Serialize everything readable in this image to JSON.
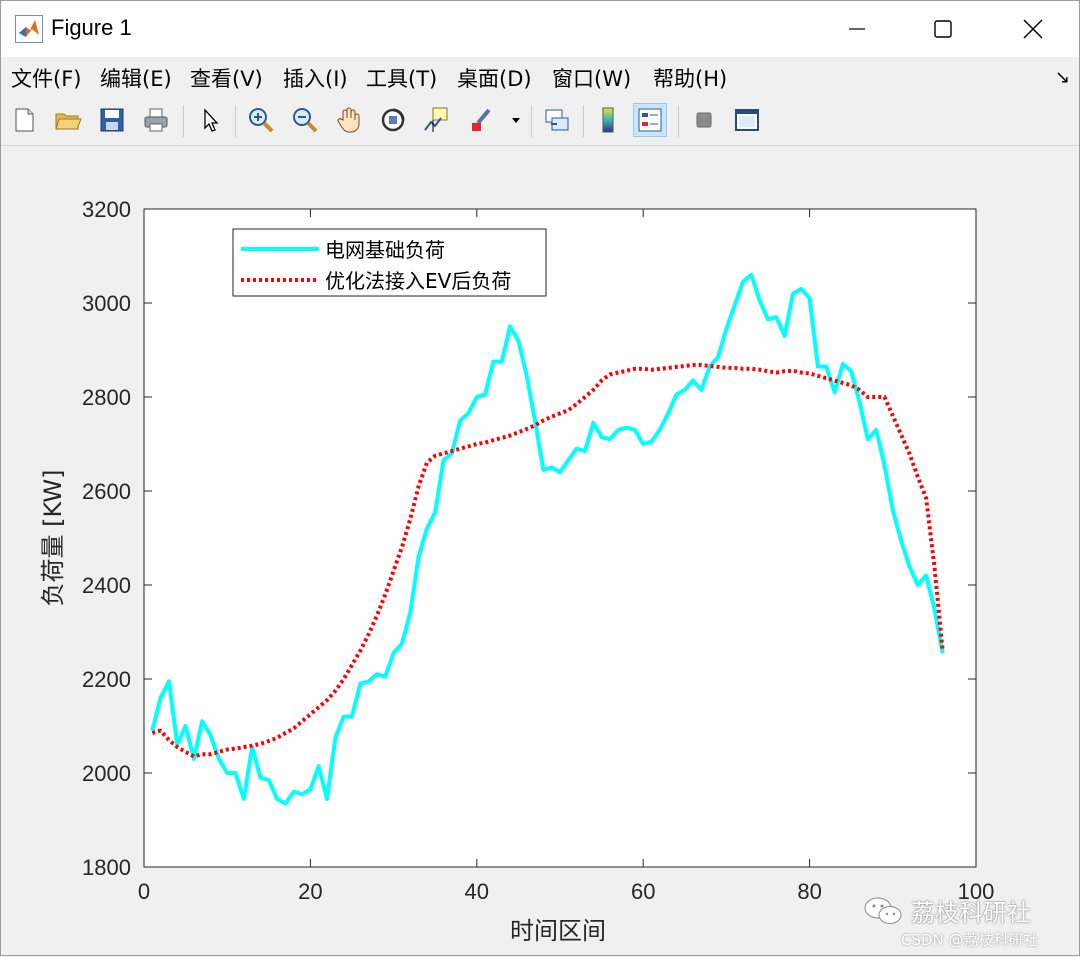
{
  "window": {
    "title": "Figure 1",
    "controls": {
      "minimize": "minimize",
      "maximize": "maximize",
      "close": "close"
    }
  },
  "menu": {
    "items": [
      "文件(F)",
      "编辑(E)",
      "查看(V)",
      "插入(I)",
      "工具(T)",
      "桌面(D)",
      "窗口(W)",
      "帮助(H)"
    ],
    "dock_arrow": "↘"
  },
  "toolbar": {
    "icons": [
      "new-figure-icon",
      "open-file-icon",
      "save-icon",
      "print-icon",
      "select-arrow-icon",
      "zoom-in-icon",
      "zoom-out-icon",
      "pan-hand-icon",
      "rotate-3d-icon",
      "data-cursor-icon",
      "brush-icon",
      "link-plot-icon",
      "colorbar-icon",
      "legend-icon",
      "hide-plot-tools-icon",
      "show-plot-tools-icon"
    ]
  },
  "chart_data": {
    "type": "line",
    "title": "",
    "xlabel": "时间区间",
    "ylabel": "负荷量 [KW]",
    "xlim": [
      0,
      100
    ],
    "ylim": [
      1800,
      3200
    ],
    "xticks": [
      0,
      20,
      40,
      60,
      80,
      100
    ],
    "yticks": [
      1800,
      2000,
      2200,
      2400,
      2600,
      2800,
      3000,
      3200
    ],
    "grid": false,
    "legend_position": "top-left",
    "series": [
      {
        "name": "电网基础负荷",
        "color": "#00ffff",
        "style": "solid",
        "x": [
          1,
          2,
          3,
          4,
          5,
          6,
          7,
          8,
          9,
          10,
          11,
          12,
          13,
          14,
          15,
          16,
          17,
          18,
          19,
          20,
          21,
          22,
          23,
          24,
          25,
          26,
          27,
          28,
          29,
          30,
          31,
          32,
          33,
          34,
          35,
          36,
          37,
          38,
          39,
          40,
          41,
          42,
          43,
          44,
          45,
          46,
          47,
          48,
          49,
          50,
          51,
          52,
          53,
          54,
          55,
          56,
          57,
          58,
          59,
          60,
          61,
          62,
          63,
          64,
          65,
          66,
          67,
          68,
          69,
          70,
          71,
          72,
          73,
          74,
          75,
          76,
          77,
          78,
          79,
          80,
          81,
          82,
          83,
          84,
          85,
          86,
          87,
          88,
          89,
          90,
          91,
          92,
          93,
          94,
          95,
          96
        ],
        "values": [
          2090,
          2160,
          2195,
          2060,
          2100,
          2030,
          2110,
          2080,
          2030,
          2000,
          2000,
          1945,
          2055,
          1990,
          1985,
          1945,
          1935,
          1960,
          1955,
          1965,
          2015,
          1945,
          2075,
          2120,
          2120,
          2190,
          2195,
          2210,
          2205,
          2255,
          2275,
          2340,
          2460,
          2520,
          2555,
          2665,
          2680,
          2750,
          2765,
          2800,
          2805,
          2875,
          2875,
          2950,
          2920,
          2845,
          2750,
          2645,
          2650,
          2640,
          2665,
          2690,
          2685,
          2745,
          2715,
          2710,
          2730,
          2735,
          2730,
          2700,
          2705,
          2730,
          2765,
          2805,
          2815,
          2835,
          2815,
          2865,
          2885,
          2945,
          2995,
          3045,
          3060,
          3005,
          2965,
          2970,
          2930,
          3020,
          3030,
          3010,
          2865,
          2865,
          2810,
          2870,
          2855,
          2790,
          2710,
          2730,
          2655,
          2560,
          2495,
          2440,
          2400,
          2420,
          2350,
          2255
        ]
      },
      {
        "name": "优化法接入EV后负荷",
        "color": "#ff0000",
        "style": "dotted",
        "x": [
          1,
          2,
          3,
          4,
          5,
          6,
          7,
          8,
          9,
          10,
          11,
          12,
          13,
          14,
          15,
          16,
          17,
          18,
          19,
          20,
          21,
          22,
          23,
          24,
          25,
          26,
          27,
          28,
          29,
          30,
          31,
          32,
          33,
          34,
          35,
          36,
          37,
          38,
          39,
          40,
          41,
          42,
          43,
          44,
          45,
          46,
          47,
          48,
          49,
          50,
          51,
          52,
          53,
          54,
          55,
          56,
          57,
          58,
          59,
          60,
          61,
          62,
          63,
          64,
          65,
          66,
          67,
          68,
          69,
          70,
          71,
          72,
          73,
          74,
          75,
          76,
          77,
          78,
          79,
          80,
          81,
          82,
          83,
          84,
          85,
          86,
          87,
          88,
          89,
          90,
          91,
          92,
          93,
          94,
          95,
          96
        ],
        "values": [
          2085,
          2090,
          2070,
          2055,
          2045,
          2035,
          2040,
          2040,
          2045,
          2050,
          2052,
          2055,
          2058,
          2062,
          2068,
          2075,
          2085,
          2095,
          2110,
          2125,
          2140,
          2155,
          2175,
          2200,
          2230,
          2260,
          2295,
          2335,
          2380,
          2430,
          2480,
          2540,
          2610,
          2660,
          2675,
          2680,
          2685,
          2690,
          2695,
          2700,
          2703,
          2708,
          2713,
          2718,
          2725,
          2732,
          2740,
          2750,
          2758,
          2765,
          2772,
          2785,
          2800,
          2815,
          2835,
          2848,
          2852,
          2856,
          2860,
          2860,
          2858,
          2860,
          2862,
          2864,
          2866,
          2868,
          2868,
          2866,
          2864,
          2862,
          2862,
          2860,
          2860,
          2858,
          2855,
          2852,
          2855,
          2856,
          2852,
          2850,
          2845,
          2840,
          2835,
          2830,
          2825,
          2815,
          2800,
          2800,
          2800,
          2760,
          2720,
          2680,
          2630,
          2585,
          2440,
          2260
        ]
      }
    ]
  },
  "watermark": {
    "name": "荔枝科研社",
    "source": "CSDN @荔枝科研社"
  }
}
